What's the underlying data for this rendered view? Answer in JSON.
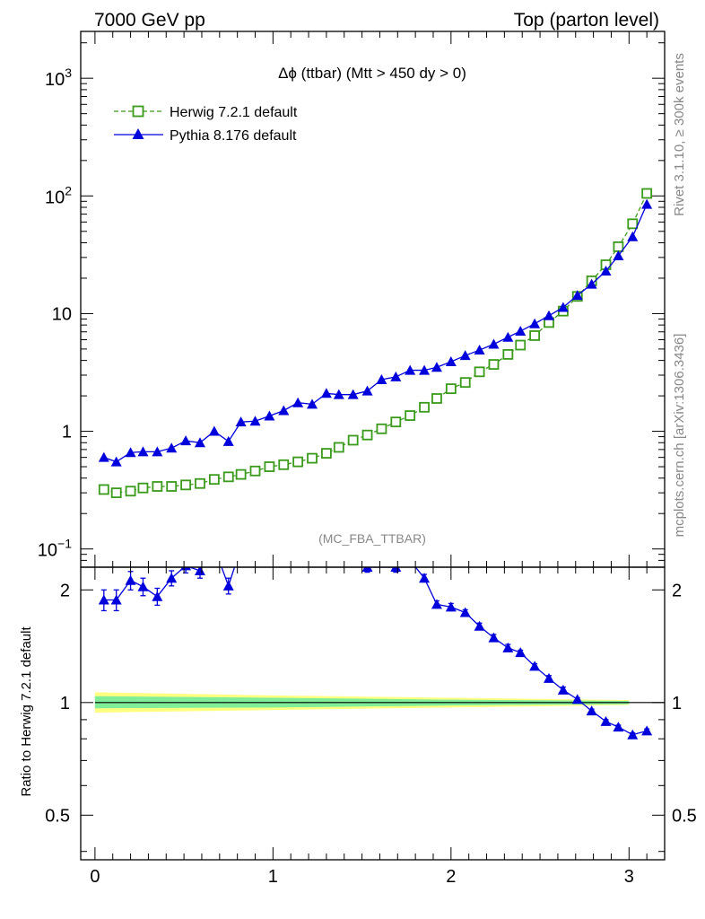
{
  "header": {
    "left": "7000 GeV pp",
    "right": "Top (parton level)"
  },
  "side_labels": {
    "rivet": "Rivet 3.1.10, ≥ 300k events",
    "mcplots": "mcplots.cern.ch [arXiv:1306.3436]"
  },
  "chart_data": [
    {
      "type": "line",
      "title": "Δϕ (ttbar) (Mtt > 450 dy > 0)",
      "watermark": "(MC_FBA_TTBAR)",
      "yscale": "log",
      "xlim": [
        -0.08,
        3.2
      ],
      "ylim": [
        0.07,
        2500
      ],
      "y_ticks": [
        {
          "value": 1000,
          "base": "10",
          "exp": "3"
        },
        {
          "value": 100,
          "base": "10",
          "exp": "2"
        },
        {
          "value": 10,
          "base": "10",
          "exp": ""
        },
        {
          "value": 1,
          "base": "1",
          "exp": ""
        },
        {
          "value": 0.1,
          "base": "10",
          "exp": "−1"
        }
      ],
      "legend_position": "top-left",
      "x": [
        0.05,
        0.12,
        0.2,
        0.27,
        0.35,
        0.43,
        0.51,
        0.59,
        0.67,
        0.75,
        0.82,
        0.9,
        0.98,
        1.06,
        1.14,
        1.22,
        1.3,
        1.37,
        1.45,
        1.53,
        1.61,
        1.69,
        1.77,
        1.85,
        1.92,
        2.0,
        2.08,
        2.16,
        2.24,
        2.32,
        2.39,
        2.47,
        2.55,
        2.63,
        2.71,
        2.79,
        2.87,
        2.94,
        3.02,
        3.1
      ],
      "series": [
        {
          "name": "Herwig 7.2.1 default",
          "color": "#3a9a1a",
          "marker": "open-square",
          "line": "dashed",
          "values": [
            0.32,
            0.3,
            0.31,
            0.33,
            0.34,
            0.34,
            0.35,
            0.36,
            0.39,
            0.41,
            0.43,
            0.46,
            0.5,
            0.52,
            0.55,
            0.59,
            0.65,
            0.73,
            0.84,
            0.93,
            1.05,
            1.2,
            1.36,
            1.6,
            1.9,
            2.3,
            2.6,
            3.2,
            3.7,
            4.5,
            5.4,
            6.5,
            8.4,
            10.5,
            14,
            19,
            26,
            37,
            58,
            105
          ]
        },
        {
          "name": "Pythia 8.176 default",
          "color": "#0000dd",
          "marker": "filled-triangle",
          "line": "solid",
          "values": [
            0.6,
            0.55,
            0.66,
            0.67,
            0.67,
            0.72,
            0.83,
            0.8,
            1.0,
            0.82,
            1.2,
            1.22,
            1.35,
            1.5,
            1.75,
            1.7,
            2.1,
            2.05,
            2.05,
            2.2,
            2.75,
            2.9,
            3.3,
            3.3,
            3.5,
            3.9,
            4.4,
            4.9,
            5.5,
            6.3,
            7.1,
            8.2,
            9.6,
            11.3,
            14.3,
            17.8,
            23,
            31,
            45,
            85
          ]
        }
      ]
    },
    {
      "type": "line",
      "ylabel": "Ratio to Herwig 7.2.1 default",
      "xlim": [
        -0.08,
        3.2
      ],
      "ylim": [
        0.38,
        2.3
      ],
      "yscale": "log",
      "x_ticks": [
        "0",
        "1",
        "2",
        "3"
      ],
      "y_ticks": [
        "0.5",
        "1",
        "2"
      ],
      "reference_line": 1,
      "band_yellow": {
        "x": [
          0.0,
          1.0,
          2.0,
          3.0
        ],
        "low": [
          0.94,
          0.955,
          0.97,
          0.985
        ],
        "high": [
          1.065,
          1.045,
          1.03,
          1.015
        ]
      },
      "band_green": {
        "x": [
          0.0,
          1.0,
          2.0,
          3.0
        ],
        "low": [
          0.965,
          0.97,
          0.982,
          0.99
        ],
        "high": [
          1.04,
          1.03,
          1.018,
          1.01
        ]
      },
      "series": [
        {
          "name": "Pythia 8.176 default",
          "color": "#0000dd",
          "x": [
            0.05,
            0.12,
            0.2,
            0.27,
            0.35,
            0.43,
            0.51,
            0.59,
            0.67,
            0.75,
            0.82,
            1.45,
            1.53,
            1.69,
            1.77,
            1.85,
            1.92,
            2.0,
            2.08,
            2.16,
            2.24,
            2.32,
            2.39,
            2.47,
            2.55,
            2.63,
            2.71,
            2.79,
            2.87,
            2.94,
            3.02,
            3.1
          ],
          "values": [
            1.88,
            1.88,
            2.12,
            2.04,
            1.92,
            2.15,
            2.32,
            2.25,
            2.6,
            2.05,
            2.6,
            2.4,
            2.3,
            2.3,
            2.4,
            2.15,
            1.83,
            1.8,
            1.74,
            1.6,
            1.49,
            1.4,
            1.36,
            1.25,
            1.16,
            1.08,
            1.02,
            0.95,
            0.89,
            0.86,
            0.82,
            0.84
          ],
          "errors": [
            0.12,
            0.12,
            0.12,
            0.11,
            0.1,
            0.1,
            0.1,
            0.1,
            0.1,
            0.1,
            0.1,
            0.08,
            0.07,
            0.07,
            0.06,
            0.05,
            0.04,
            0.04,
            0.03,
            0.03,
            0.03,
            0.03,
            0.02,
            0.02,
            0.02,
            0.02,
            0.01,
            0.01,
            0.01,
            0.01,
            0.01,
            0.01
          ]
        }
      ]
    }
  ]
}
